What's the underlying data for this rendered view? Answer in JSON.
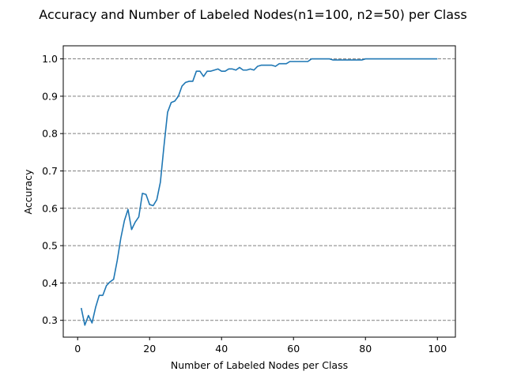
{
  "chart_data": {
    "type": "line",
    "title": "Accuracy and Number of Labeled Nodes(n1=100, n2=50) per Class",
    "xlabel": "Number of Labeled Nodes per Class",
    "ylabel": "Accuracy",
    "xlim": [
      -4,
      105
    ],
    "ylim": [
      0.255,
      1.035
    ],
    "xticks": [
      0,
      20,
      40,
      60,
      80,
      100
    ],
    "yticks": [
      0.3,
      0.4,
      0.5,
      0.6,
      0.7,
      0.8,
      0.9,
      1.0
    ],
    "ytick_labels": [
      "0.3",
      "0.4",
      "0.5",
      "0.6",
      "0.7",
      "0.8",
      "0.9",
      "1.0"
    ],
    "grid": "y-dashed",
    "line_color": "#1f77b4",
    "grid_color": "#808080",
    "series": [
      {
        "x": [
          1,
          2,
          3,
          4,
          5,
          6,
          7,
          8,
          9,
          10,
          11,
          12,
          13,
          14,
          15,
          16,
          17,
          18,
          19,
          20,
          21,
          22,
          23,
          24,
          25,
          26,
          27,
          28,
          29,
          30,
          31,
          32,
          33,
          34,
          35,
          36,
          37,
          38,
          39,
          40,
          41,
          42,
          43,
          44,
          45,
          46,
          47,
          48,
          49,
          50,
          51,
          52,
          53,
          54,
          55,
          56,
          57,
          58,
          59,
          60,
          61,
          62,
          63,
          64,
          65,
          66,
          67,
          68,
          69,
          70,
          71,
          72,
          73,
          74,
          75,
          76,
          77,
          78,
          79,
          80,
          81,
          82,
          83,
          84,
          85,
          86,
          87,
          88,
          89,
          90,
          91,
          92,
          93,
          94,
          95,
          96,
          97,
          98,
          99,
          100
        ],
        "values": [
          0.333,
          0.287,
          0.313,
          0.293,
          0.335,
          0.367,
          0.367,
          0.393,
          0.403,
          0.41,
          0.46,
          0.52,
          0.567,
          0.597,
          0.543,
          0.563,
          0.577,
          0.64,
          0.637,
          0.61,
          0.607,
          0.623,
          0.67,
          0.767,
          0.857,
          0.883,
          0.887,
          0.9,
          0.927,
          0.937,
          0.94,
          0.94,
          0.967,
          0.967,
          0.953,
          0.967,
          0.967,
          0.97,
          0.973,
          0.967,
          0.967,
          0.973,
          0.973,
          0.97,
          0.977,
          0.97,
          0.97,
          0.973,
          0.97,
          0.98,
          0.983,
          0.983,
          0.983,
          0.983,
          0.98,
          0.987,
          0.987,
          0.987,
          0.993,
          0.993,
          0.993,
          0.993,
          0.993,
          0.993,
          1.0,
          1.0,
          1.0,
          1.0,
          1.0,
          1.0,
          0.997,
          0.997,
          0.997,
          0.997,
          0.997,
          0.997,
          0.997,
          0.997,
          0.997,
          1.0,
          1.0,
          1.0,
          1.0,
          1.0,
          1.0,
          1.0,
          1.0,
          1.0,
          1.0,
          1.0,
          1.0,
          1.0,
          1.0,
          1.0,
          1.0,
          1.0,
          1.0,
          1.0,
          1.0,
          1.0
        ]
      }
    ]
  }
}
